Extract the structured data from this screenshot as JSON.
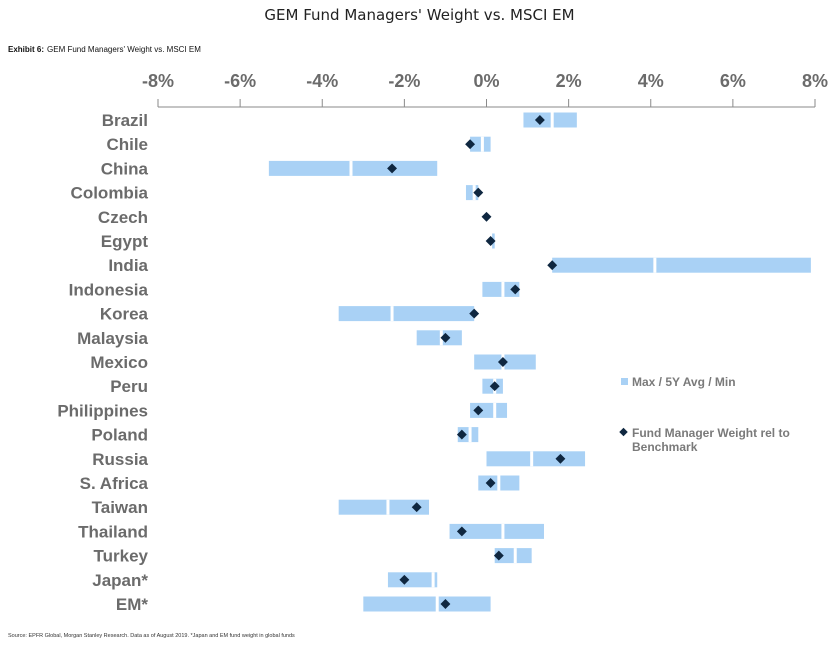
{
  "page_title": "GEM Fund Managers' Weight vs. MSCI EM",
  "exhibit": {
    "label": "Exhibit 6:",
    "text": "GEM Fund Managers' Weight vs. MSCI EM"
  },
  "source": "Source: EPFR Global, Morgan Stanley Research. Data as of August 2019. *Japan and EM fund weight in global funds",
  "colors": {
    "bar": "#a9d1f5",
    "marker": "#0f2740",
    "axis": "#8a8a8a",
    "text": "#6b6b6b"
  },
  "legend": {
    "range_label": "Max / 5Y Avg / Min",
    "marker_label_line1": "Fund Manager Weight rel to",
    "marker_label_line2": "Benchmark"
  },
  "chart_data": {
    "type": "range-dot",
    "title": "GEM Fund Managers' Weight vs. MSCI EM",
    "x_ticks": [
      "-8%",
      "-6%",
      "-4%",
      "-2%",
      "0%",
      "2%",
      "4%",
      "6%",
      "8%"
    ],
    "xlim": [
      -8,
      8
    ],
    "categories": [
      "Brazil",
      "Chile",
      "China",
      "Colombia",
      "Czech",
      "Egypt",
      "India",
      "Indonesia",
      "Korea",
      "Malaysia",
      "Mexico",
      "Peru",
      "Philippines",
      "Poland",
      "Russia",
      "S. Africa",
      "Taiwan",
      "Thailand",
      "Turkey",
      "Japan*",
      "EM*"
    ],
    "series": [
      {
        "name": "Min",
        "values": [
          0.9,
          -0.4,
          -5.3,
          -0.5,
          0.0,
          0.1,
          1.6,
          -0.1,
          -3.6,
          -1.7,
          -0.3,
          -0.1,
          -0.4,
          -0.7,
          0.0,
          -0.2,
          -3.6,
          -0.9,
          0.2,
          -2.4,
          -3.0
        ]
      },
      {
        "name": "5Y Avg",
        "values": [
          1.6,
          -0.1,
          -3.3,
          -0.3,
          0.0,
          0.1,
          4.1,
          0.4,
          -2.3,
          -1.1,
          0.4,
          0.2,
          0.2,
          -0.4,
          1.1,
          0.3,
          -2.4,
          0.4,
          0.7,
          -1.3,
          -1.2
        ]
      },
      {
        "name": "Max",
        "values": [
          2.2,
          0.1,
          -1.2,
          -0.2,
          0.0,
          0.2,
          7.9,
          0.8,
          -0.3,
          -0.6,
          1.2,
          0.4,
          0.5,
          -0.2,
          2.4,
          0.8,
          -1.4,
          1.4,
          1.1,
          -1.2,
          0.1
        ]
      },
      {
        "name": "Fund Manager Weight rel to Benchmark",
        "values": [
          1.3,
          -0.4,
          -2.3,
          -0.2,
          0.0,
          0.1,
          1.6,
          0.7,
          -0.3,
          -1.0,
          0.4,
          0.2,
          -0.2,
          -0.6,
          1.8,
          0.1,
          -1.7,
          -0.6,
          0.3,
          -2.0,
          -1.0
        ]
      }
    ]
  }
}
